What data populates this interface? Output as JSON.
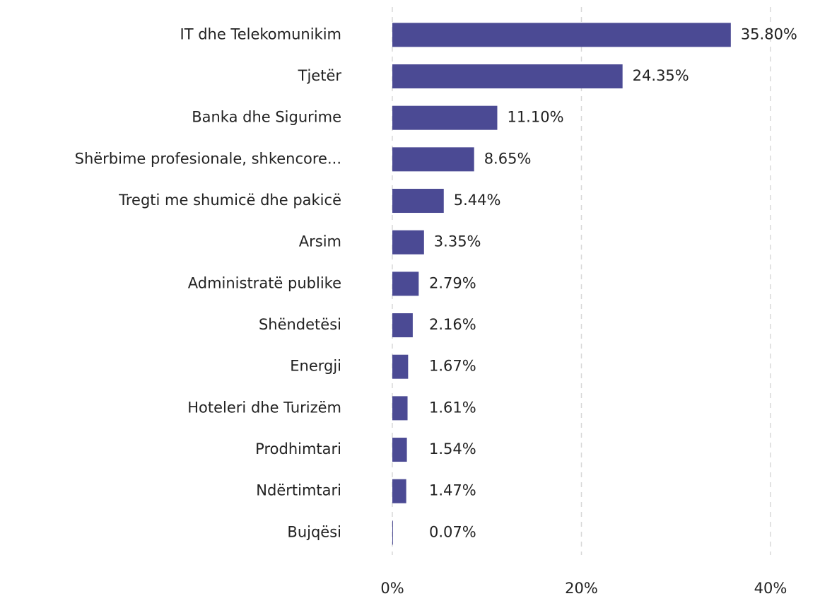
{
  "chart_data": {
    "type": "bar",
    "orientation": "horizontal",
    "categories": [
      "IT dhe Telekomunikim",
      "Tjetër",
      "Banka dhe Sigurime",
      "Shërbime profesionale, shkencore...",
      "Tregti me shumicë dhe pakicë",
      "Arsim",
      "Administratë publike",
      "Shëndetësi",
      "Energji",
      "Hoteleri dhe Turizëm",
      "Prodhimtari",
      "Ndërtimtari",
      "Bujqësi"
    ],
    "values": [
      35.8,
      24.35,
      11.1,
      8.65,
      5.44,
      3.35,
      2.79,
      2.16,
      1.67,
      1.61,
      1.54,
      1.47,
      0.07
    ],
    "value_labels": [
      "35.80%",
      "24.35%",
      "11.10%",
      "8.65%",
      "5.44%",
      "3.35%",
      "2.79%",
      "2.16%",
      "1.67%",
      "1.61%",
      "1.54%",
      "1.47%",
      "0.07%"
    ],
    "color": "#4b4a94",
    "xlim": [
      0,
      40
    ],
    "xticks": [
      {
        "value": 0,
        "label": "0%"
      },
      {
        "value": 20,
        "label": "20%"
      },
      {
        "value": 40,
        "label": "40%"
      }
    ],
    "grid": true
  }
}
